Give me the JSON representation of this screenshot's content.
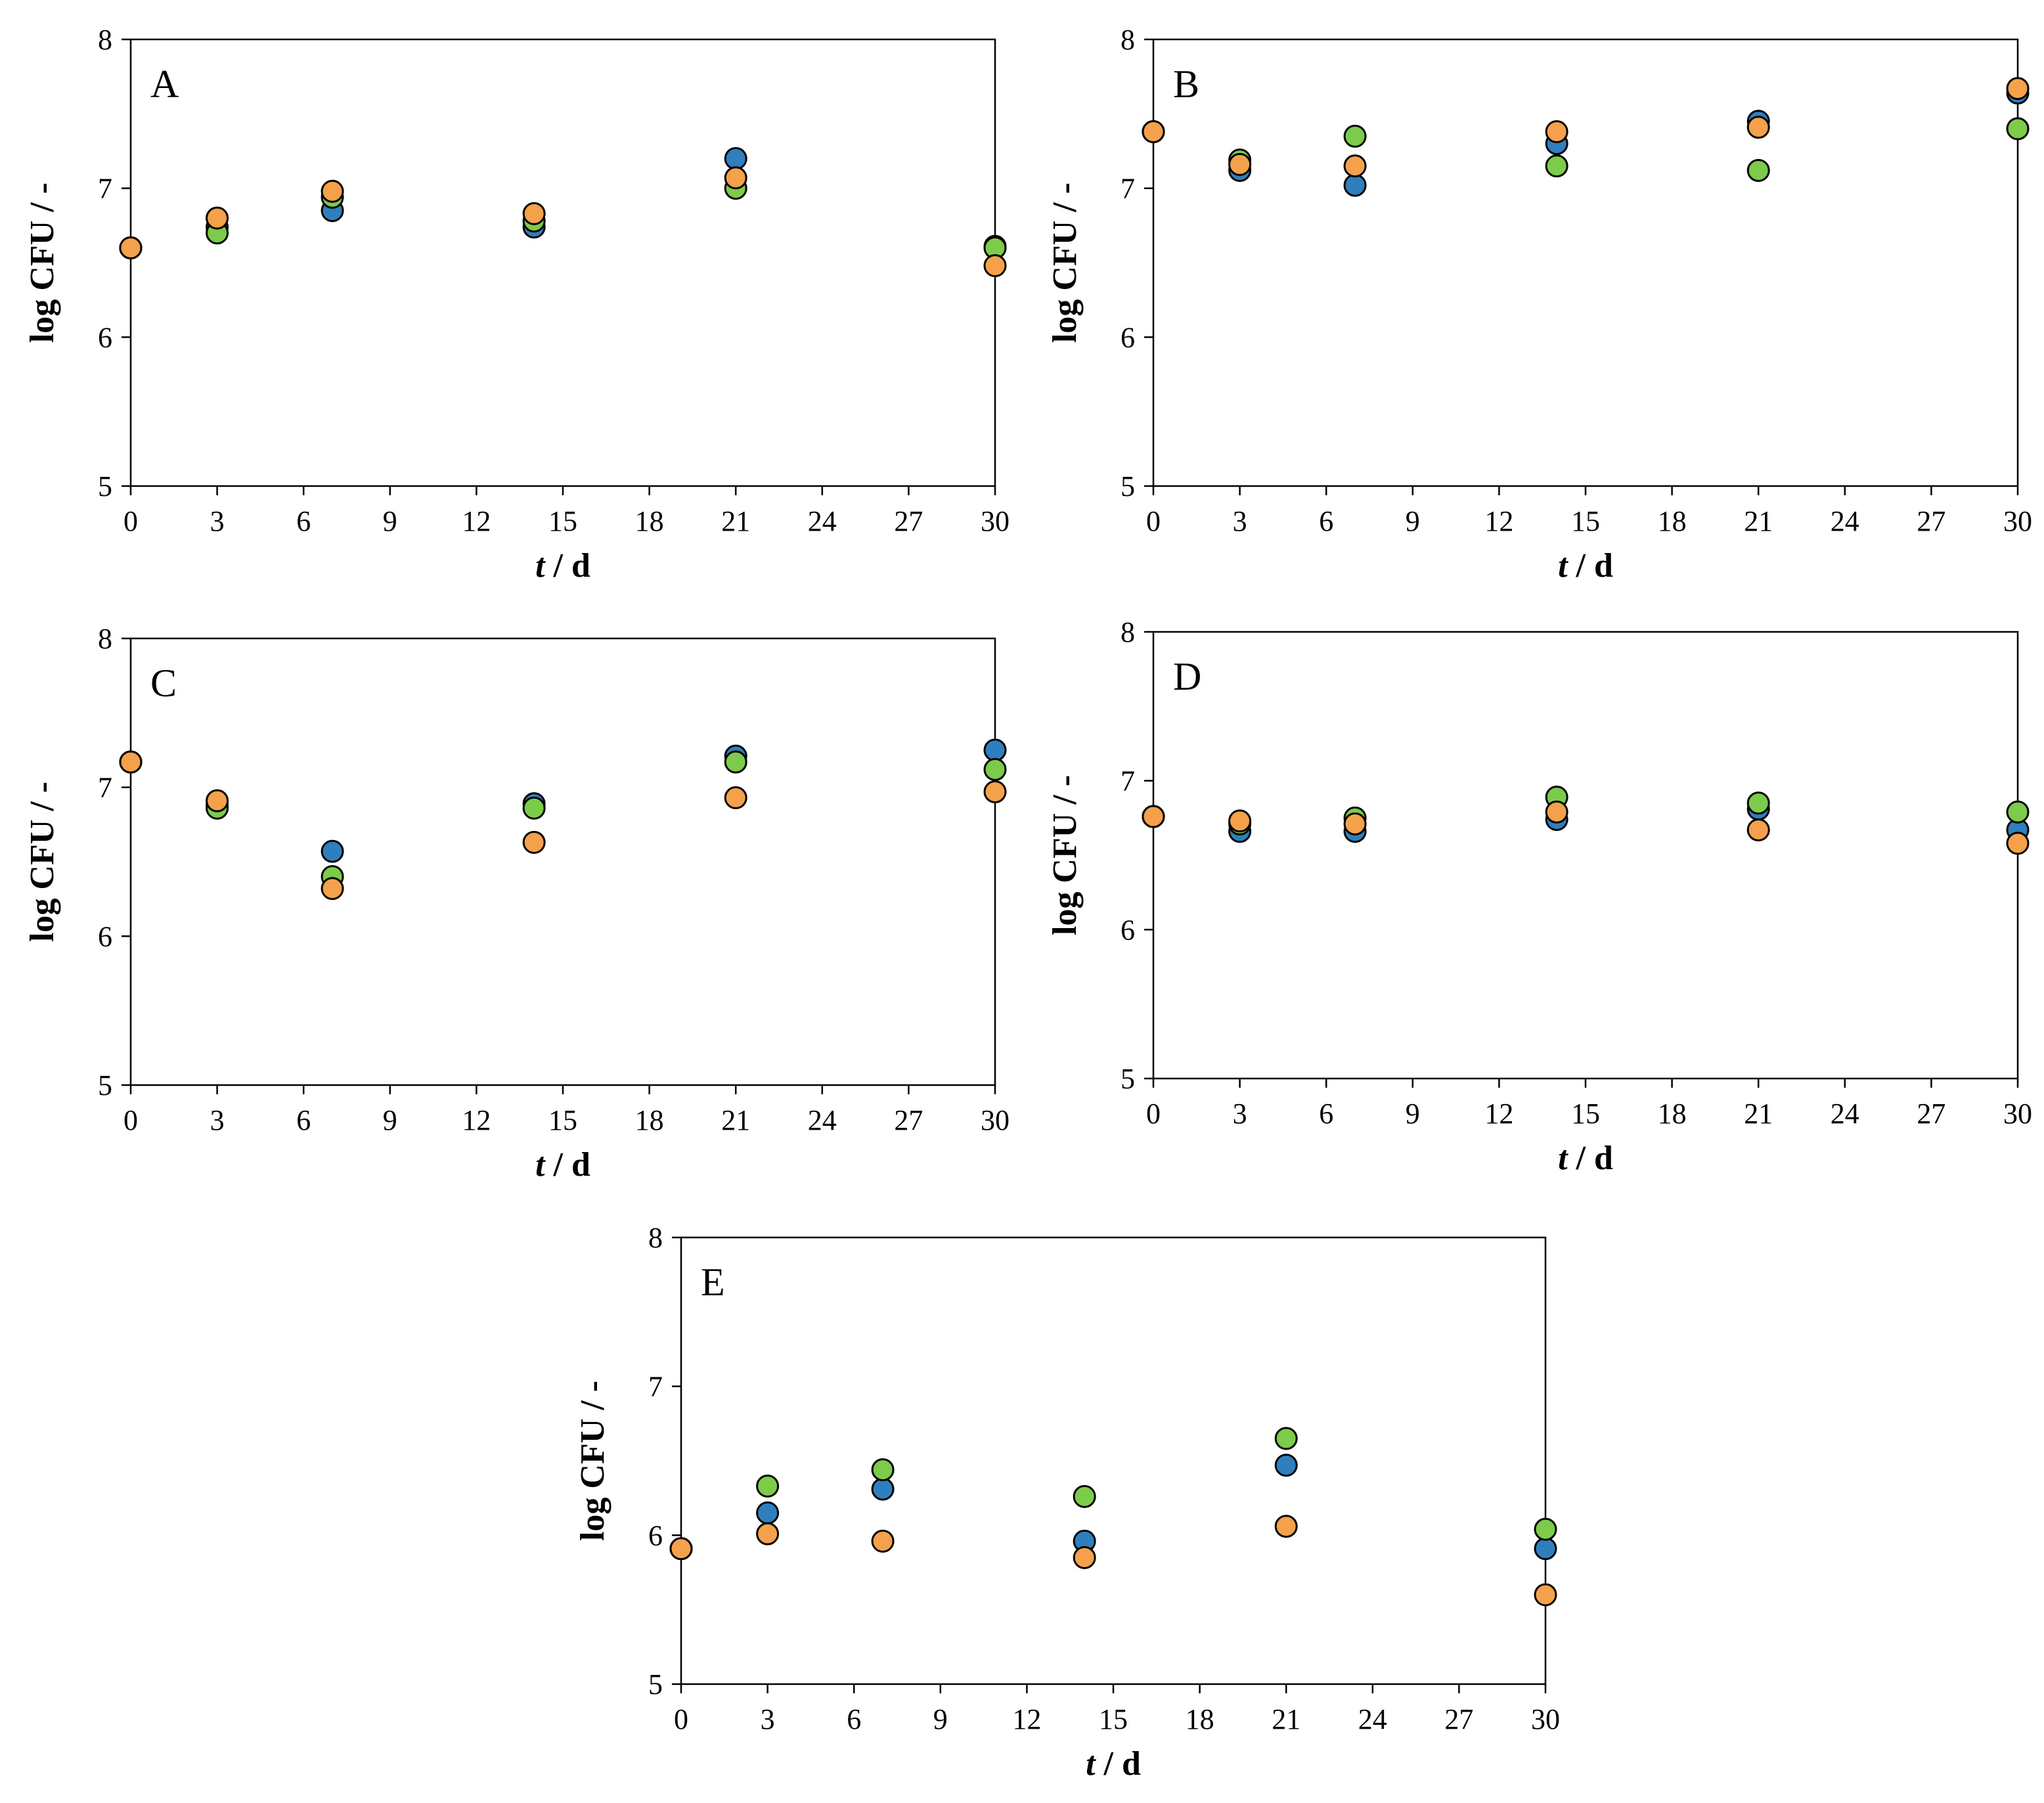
{
  "colors": {
    "blue": "#2f7fbf",
    "green": "#7ccb4a",
    "orange": "#f5a04a"
  },
  "series_names": [
    "blue",
    "green",
    "orange"
  ],
  "chart_data": [
    {
      "type": "scatter",
      "label": "A",
      "xlabel_italic": "t",
      "xlabel_rest": " / d",
      "ylabel": "log CFU / -",
      "xlim": [
        0,
        30
      ],
      "ylim": [
        5,
        8
      ],
      "xticks": [
        "0",
        "3",
        "6",
        "9",
        "12",
        "15",
        "18",
        "21",
        "24",
        "27",
        "30"
      ],
      "yticks": [
        "5",
        "6",
        "7",
        "8"
      ],
      "x": [
        0,
        3,
        7,
        14,
        21,
        30
      ],
      "series": [
        {
          "name": "blue",
          "values": [
            6.6,
            6.74,
            6.85,
            6.74,
            7.2,
            6.61
          ]
        },
        {
          "name": "green",
          "values": [
            6.6,
            6.7,
            6.94,
            6.78,
            7.0,
            6.6
          ]
        },
        {
          "name": "orange",
          "values": [
            6.6,
            6.8,
            6.98,
            6.83,
            7.07,
            6.48
          ]
        }
      ]
    },
    {
      "type": "scatter",
      "label": "B",
      "xlabel_italic": "t",
      "xlabel_rest": " / d",
      "ylabel": "log CFU / -",
      "xlim": [
        0,
        30
      ],
      "ylim": [
        5,
        8
      ],
      "xticks": [
        "0",
        "3",
        "6",
        "9",
        "12",
        "15",
        "18",
        "21",
        "24",
        "27",
        "30"
      ],
      "yticks": [
        "5",
        "6",
        "7",
        "8"
      ],
      "x": [
        0,
        3,
        7,
        14,
        21,
        30
      ],
      "series": [
        {
          "name": "blue",
          "values": [
            7.38,
            7.12,
            7.02,
            7.3,
            7.45,
            7.64
          ]
        },
        {
          "name": "green",
          "values": [
            7.38,
            7.19,
            7.35,
            7.15,
            7.12,
            7.4
          ]
        },
        {
          "name": "orange",
          "values": [
            7.38,
            7.16,
            7.15,
            7.38,
            7.41,
            7.67
          ]
        }
      ]
    },
    {
      "type": "scatter",
      "label": "C",
      "xlabel_italic": "t",
      "xlabel_rest": " / d",
      "ylabel": "log CFU / -",
      "xlim": [
        0,
        30
      ],
      "ylim": [
        5,
        8
      ],
      "xticks": [
        "0",
        "3",
        "6",
        "9",
        "12",
        "15",
        "18",
        "21",
        "24",
        "27",
        "30"
      ],
      "yticks": [
        "5",
        "6",
        "7",
        "8"
      ],
      "x": [
        0,
        3,
        7,
        14,
        21,
        30
      ],
      "series": [
        {
          "name": "blue",
          "values": [
            7.17,
            6.88,
            6.57,
            6.89,
            7.21,
            7.25
          ]
        },
        {
          "name": "green",
          "values": [
            7.17,
            6.86,
            6.4,
            6.86,
            7.17,
            7.12
          ]
        },
        {
          "name": "orange",
          "values": [
            7.17,
            6.91,
            6.32,
            6.63,
            6.93,
            6.97
          ]
        }
      ]
    },
    {
      "type": "scatter",
      "label": "D",
      "xlabel_italic": "t",
      "xlabel_rest": " / d",
      "ylabel": "log CFU / -",
      "xlim": [
        0,
        30
      ],
      "ylim": [
        5,
        8
      ],
      "xticks": [
        "0",
        "3",
        "6",
        "9",
        "12",
        "15",
        "18",
        "21",
        "24",
        "27",
        "30"
      ],
      "yticks": [
        "5",
        "6",
        "7",
        "8"
      ],
      "x": [
        0,
        3,
        7,
        14,
        21,
        30
      ],
      "series": [
        {
          "name": "blue",
          "values": [
            6.76,
            6.66,
            6.66,
            6.74,
            6.81,
            6.67
          ]
        },
        {
          "name": "green",
          "values": [
            6.76,
            6.71,
            6.75,
            6.89,
            6.85,
            6.79
          ]
        },
        {
          "name": "orange",
          "values": [
            6.76,
            6.73,
            6.71,
            6.79,
            6.67,
            6.58
          ]
        }
      ]
    },
    {
      "type": "scatter",
      "label": "E",
      "xlabel_italic": "t",
      "xlabel_rest": " / d",
      "ylabel": "log CFU / -",
      "xlim": [
        0,
        30
      ],
      "ylim": [
        5,
        8
      ],
      "xticks": [
        "0",
        "3",
        "6",
        "9",
        "12",
        "15",
        "18",
        "21",
        "24",
        "27",
        "30"
      ],
      "yticks": [
        "5",
        "6",
        "7",
        "8"
      ],
      "x": [
        0,
        3,
        7,
        14,
        21,
        30
      ],
      "series": [
        {
          "name": "blue",
          "values": [
            5.91,
            6.15,
            6.31,
            5.96,
            6.47,
            5.91
          ]
        },
        {
          "name": "green",
          "values": [
            5.91,
            6.33,
            6.44,
            6.26,
            6.65,
            6.04
          ]
        },
        {
          "name": "orange",
          "values": [
            5.91,
            6.01,
            5.96,
            5.85,
            6.06,
            5.6
          ]
        }
      ]
    }
  ]
}
